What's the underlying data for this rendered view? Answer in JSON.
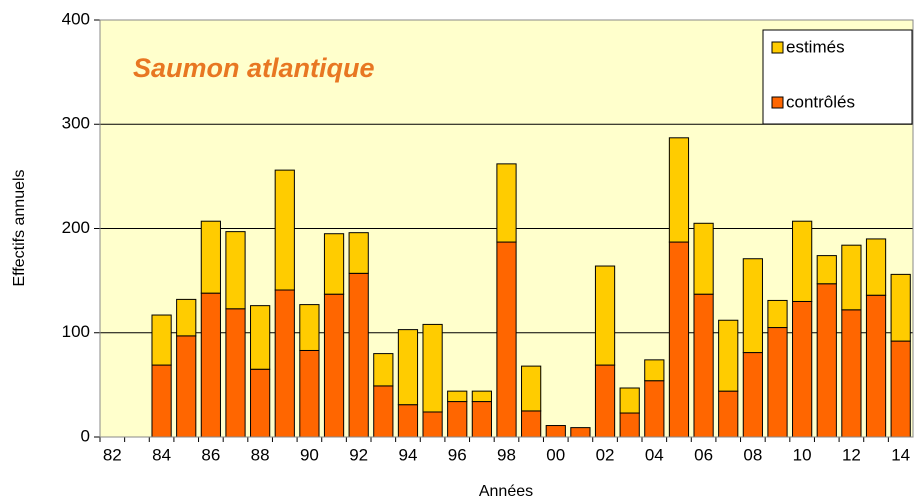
{
  "chart_data": {
    "type": "stacked_bar",
    "title": "Saumon atlantique",
    "x_label": "Années",
    "y_label": "Effectifs annuels",
    "categories": [
      "82",
      null,
      "84",
      null,
      "86",
      null,
      "88",
      null,
      "90",
      null,
      "92",
      null,
      "94",
      null,
      "96",
      null,
      "98",
      null,
      "00",
      null,
      "02",
      null,
      "04",
      null,
      "06",
      null,
      "08",
      null,
      "10",
      null,
      "12",
      null,
      "14"
    ],
    "series": [
      {
        "name": "contrôlés",
        "color": "#FF6600",
        "values": [
          0,
          0,
          69,
          97,
          138,
          123,
          65,
          141,
          83,
          137,
          157,
          49,
          31,
          24,
          34,
          34,
          187,
          25,
          11,
          9,
          69,
          23,
          54,
          187,
          137,
          44,
          81,
          105,
          130,
          147,
          122,
          136,
          92
        ]
      },
      {
        "name": "estimés",
        "color": "#FFCC00",
        "values": [
          0,
          0,
          48,
          35,
          69,
          74,
          61,
          115,
          44,
          58,
          39,
          31,
          72,
          84,
          10,
          10,
          75,
          43,
          0,
          0,
          95,
          24,
          20,
          100,
          68,
          68,
          90,
          26,
          77,
          27,
          62,
          54,
          64
        ]
      }
    ],
    "ylim": [
      0,
      400
    ],
    "yticks": [
      0,
      100,
      200,
      300,
      400
    ],
    "grid": true,
    "plot_background": "#FFFFCC",
    "legend": "top-right"
  }
}
